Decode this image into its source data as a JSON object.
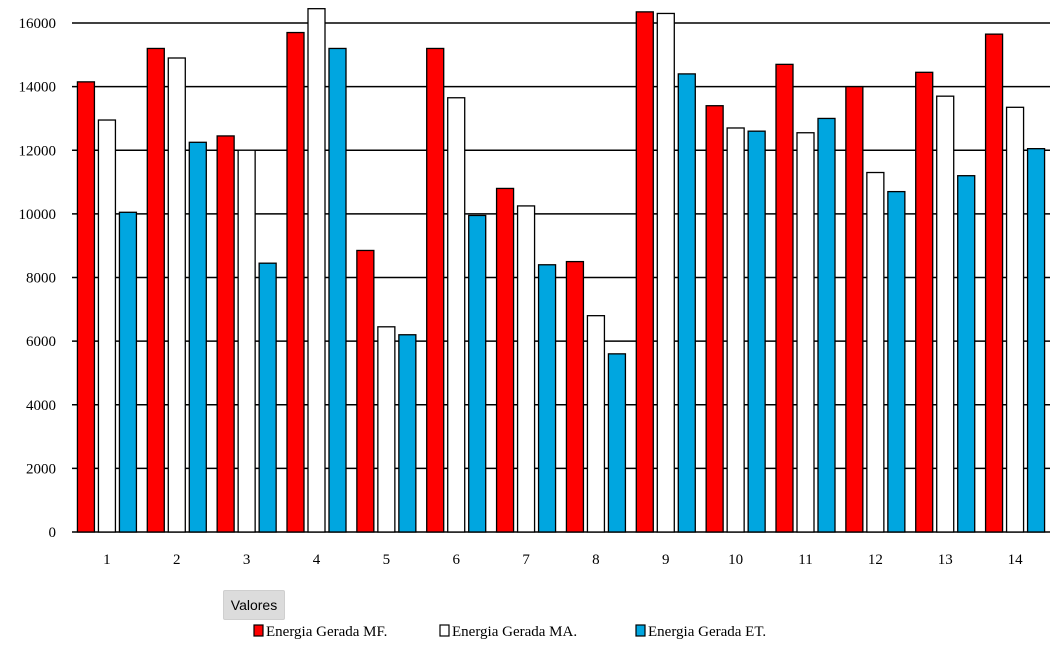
{
  "chart_data": {
    "type": "bar",
    "categories": [
      "1",
      "2",
      "3",
      "4",
      "5",
      "6",
      "7",
      "8",
      "9",
      "10",
      "11",
      "12",
      "13",
      "14"
    ],
    "series": [
      {
        "name": "Energia Gerada MF.",
        "color": "#ff0000",
        "values": [
          14150,
          15200,
          12450,
          15700,
          8850,
          15200,
          10800,
          8500,
          16350,
          13400,
          14700,
          14000,
          14450,
          15650
        ]
      },
      {
        "name": "Energia Gerada MA.",
        "color": "#ffffff",
        "values": [
          12950,
          14900,
          12000,
          16450,
          6450,
          13650,
          10250,
          6800,
          16300,
          12700,
          12550,
          11300,
          13700,
          13350
        ]
      },
      {
        "name": "Energia Gerada ET.",
        "color": "#00a6e0",
        "values": [
          10050,
          12250,
          8450,
          15200,
          6200,
          9950,
          8400,
          5600,
          14400,
          12600,
          13000,
          10700,
          11200,
          12050
        ]
      }
    ],
    "ylim": [
      0,
      16000
    ],
    "yticks": [
      0,
      2000,
      4000,
      6000,
      8000,
      10000,
      12000,
      14000,
      16000
    ],
    "grid": true,
    "legend_position": "bottom"
  },
  "field_button": "Valores"
}
